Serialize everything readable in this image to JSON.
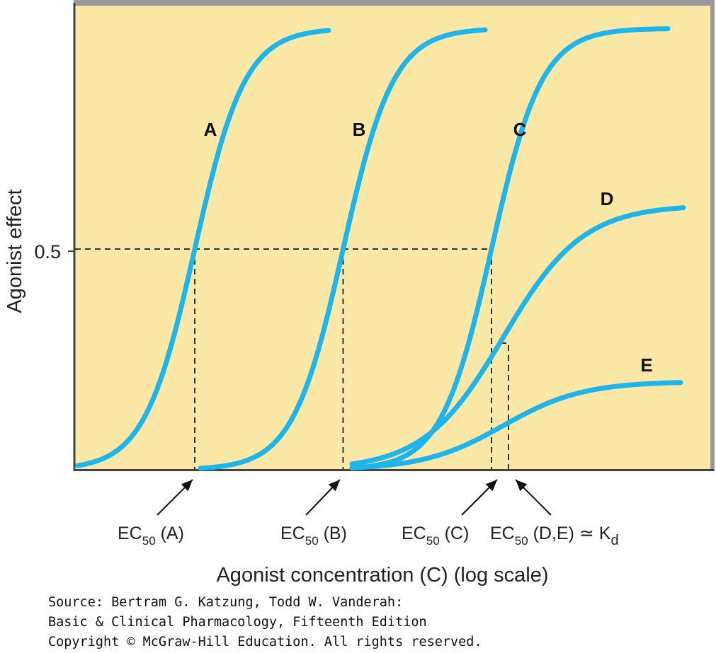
{
  "chart_data": {
    "type": "line",
    "title": "",
    "xlabel": "Agonist concentration (C) (log scale)",
    "ylabel": "Agonist effect",
    "x_scale": "log",
    "grid": false,
    "y_ticks": [
      {
        "value": 0.5,
        "label": "0.5"
      }
    ],
    "series": [
      {
        "name": "A",
        "emax": 1.0,
        "ec50": 1,
        "hill": 1.9
      },
      {
        "name": "B",
        "emax": 1.0,
        "ec50": 10,
        "hill": 1.9
      },
      {
        "name": "C",
        "emax": 1.0,
        "ec50": 100,
        "hill": 1.9
      },
      {
        "name": "D",
        "emax": 0.6,
        "ec50": 120,
        "hill": 1.2
      },
      {
        "name": "E",
        "emax": 0.2,
        "ec50": 120,
        "hill": 1.2
      }
    ],
    "annotations": [
      {
        "text": "EC",
        "subscript": "50",
        "suffix": " (A)",
        "x": 1
      },
      {
        "text": "EC",
        "subscript": "50",
        "suffix": " (B)",
        "x": 10
      },
      {
        "text": "EC",
        "subscript": "50",
        "suffix": " (C)",
        "x": 100
      },
      {
        "text": "EC",
        "subscript": "50",
        "suffix": " (D,E) ≃ K",
        "suffix_sub": "d",
        "x": 120
      }
    ]
  },
  "source": {
    "line1": "Source: Bertram G. Katzung, Todd W. Vanderah:",
    "line2": "Basic & Clinical Pharmacology, Fifteenth Edition",
    "line3": "Copyright © McGraw-Hill Education. All rights reserved."
  },
  "colors": {
    "background": "#fbe8a6",
    "curve": "#1eb4ec",
    "frame": "#999999",
    "dashed": "#333333"
  }
}
